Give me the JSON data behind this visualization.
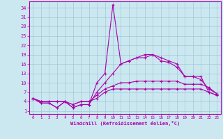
{
  "xlabel": "Windchill (Refroidissement éolien,°C)",
  "background_color": "#cbe8f0",
  "grid_color": "#a0c8d8",
  "line_color": "#aa00aa",
  "spine_color": "#aa00aa",
  "xlim": [
    -0.5,
    23.5
  ],
  "ylim": [
    0,
    36
  ],
  "xticks": [
    0,
    1,
    2,
    3,
    4,
    5,
    6,
    7,
    8,
    9,
    10,
    11,
    12,
    13,
    14,
    15,
    16,
    17,
    18,
    19,
    20,
    21,
    22,
    23
  ],
  "yticks": [
    1,
    4,
    7,
    10,
    13,
    16,
    19,
    22,
    25,
    28,
    31,
    34
  ],
  "line1_x": [
    0,
    1,
    2,
    3,
    4,
    5,
    6,
    7,
    8,
    9,
    10,
    11,
    12,
    13,
    14,
    15,
    16,
    17,
    18,
    19,
    20,
    21,
    22,
    23
  ],
  "line1_y": [
    5,
    3.5,
    3.5,
    2,
    4,
    2,
    3,
    3,
    10,
    13,
    35,
    16,
    17,
    18,
    19,
    19,
    18,
    17,
    16,
    12,
    12,
    12,
    7,
    6
  ],
  "line2_x": [
    0,
    1,
    2,
    3,
    4,
    5,
    6,
    7,
    8,
    9,
    10,
    11,
    12,
    13,
    14,
    15,
    16,
    17,
    18,
    19,
    20,
    21,
    22,
    23
  ],
  "line2_y": [
    5,
    3.5,
    3.5,
    2,
    4,
    2,
    3,
    3,
    7,
    10,
    13,
    16,
    17,
    18,
    18,
    19,
    17,
    16.5,
    15,
    12,
    12,
    11,
    8,
    6.5
  ],
  "line3_x": [
    0,
    1,
    2,
    3,
    4,
    5,
    6,
    7,
    8,
    9,
    10,
    11,
    12,
    13,
    14,
    15,
    16,
    17,
    18,
    19,
    20,
    21,
    22,
    23
  ],
  "line3_y": [
    5,
    4,
    4,
    4,
    4,
    3,
    4,
    4,
    6,
    8,
    9,
    10,
    10,
    10.5,
    10.5,
    10.5,
    10.5,
    10.5,
    10.5,
    9.5,
    9.5,
    9.5,
    8.5,
    6.5
  ],
  "line4_x": [
    0,
    1,
    2,
    3,
    4,
    5,
    6,
    7,
    8,
    9,
    10,
    11,
    12,
    13,
    14,
    15,
    16,
    17,
    18,
    19,
    20,
    21,
    22,
    23
  ],
  "line4_y": [
    5,
    4,
    4,
    4,
    4,
    3,
    4,
    4,
    5,
    7,
    8,
    8,
    8,
    8,
    8,
    8,
    8,
    8,
    8,
    8,
    8,
    8,
    7,
    6
  ]
}
